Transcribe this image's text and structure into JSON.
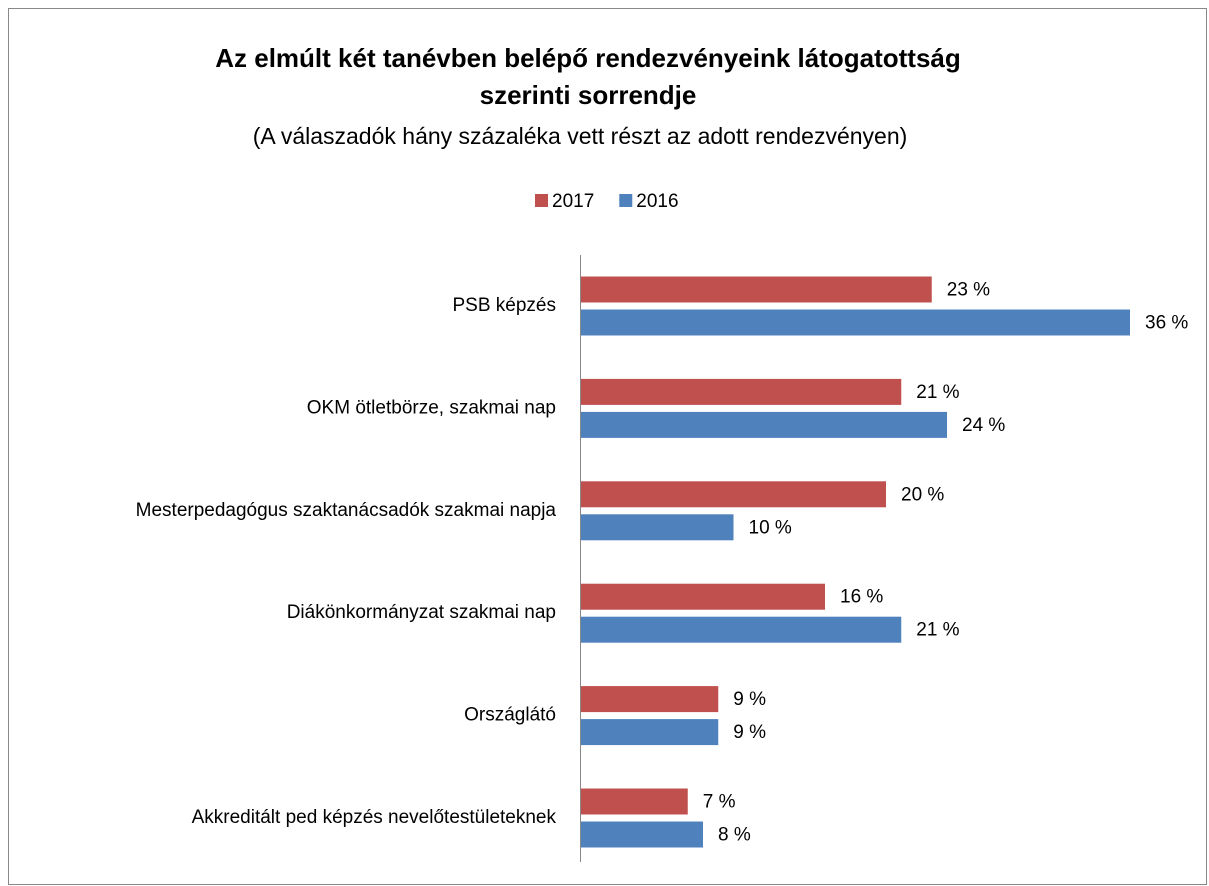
{
  "chart_data": {
    "type": "bar",
    "orientation": "horizontal",
    "title": [
      "Az elmúlt két tanévben belépő rendezvényeink látogatottság",
      "szerinti sorrendje"
    ],
    "subtitle": "(A válaszadók hány százaléka vett részt az adott rendezvényen)",
    "categories": [
      "PSB képzés",
      "OKM ötletbörze, szakmai nap",
      "Mesterpedagógus szaktanácsadók szakmai napja",
      "Diákönkormányzat szakmai nap",
      "Országlátó",
      "Akkreditált ped képzés nevelőtestületeknek"
    ],
    "series": [
      {
        "name": "2017",
        "color": "#c0504d",
        "values": [
          23,
          21,
          20,
          16,
          9,
          7
        ],
        "value_labels": [
          "23 %",
          "21 %",
          "20 %",
          "16 %",
          "9 %",
          "7 %"
        ]
      },
      {
        "name": "2016",
        "color": "#4f81bd",
        "values": [
          36,
          24,
          10,
          21,
          9,
          8
        ],
        "value_labels": [
          "36 %",
          "24 %",
          "10 %",
          "21 %",
          "9 %",
          "8 %"
        ]
      }
    ],
    "xlim": [
      0,
      36
    ],
    "legend": "top"
  }
}
